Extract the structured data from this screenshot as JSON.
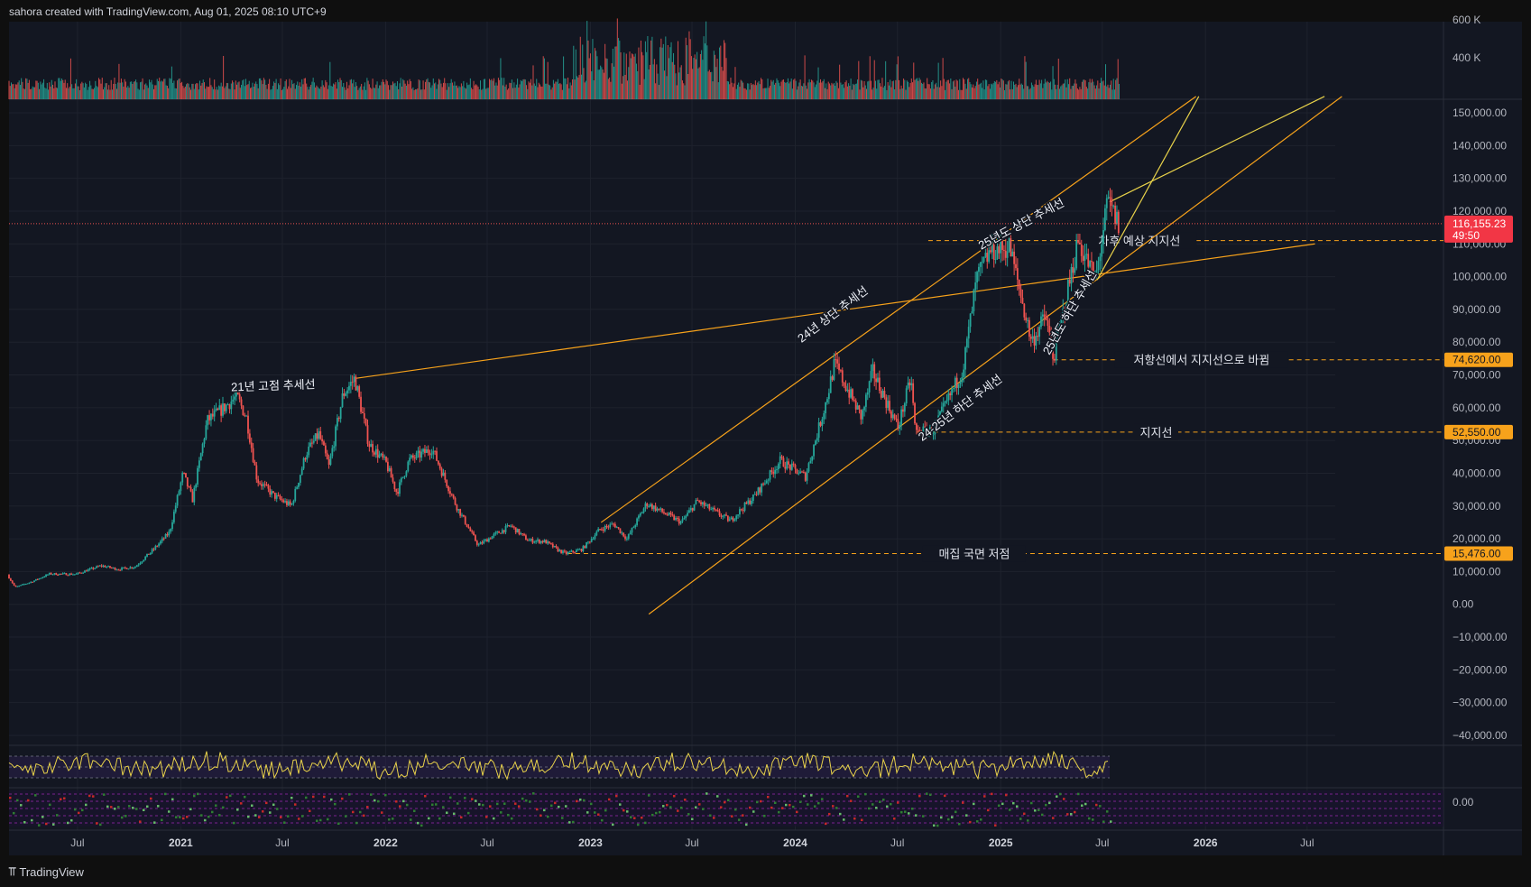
{
  "header": {
    "credit": "sahora created with TradingView.com, Aug 01, 2025 08:10 UTC+9"
  },
  "footer": {
    "brand": "TradingView",
    "logo_icon": "tradingview-logo-icon"
  },
  "colors": {
    "background": "#131722",
    "outer": "#0f0f0f",
    "grid": "#1e222d",
    "trend": "#f7a21b",
    "trend_yellow": "#e8d24a",
    "up": "#26a69a",
    "down": "#ef5350",
    "price_label": "#f23645",
    "level_label": "#f7a21b",
    "rsi": "#e8d24a"
  },
  "chart_data": {
    "type": "line",
    "symbol_price": "116,155.23",
    "countdown": "49:50",
    "current_price": 116155.23,
    "ylim": [
      -45000,
      155000
    ],
    "y_ticks": [
      150000,
      140000,
      130000,
      120000,
      110000,
      100000,
      90000,
      80000,
      70000,
      60000,
      50000,
      40000,
      30000,
      20000,
      10000,
      0,
      -10000,
      -20000,
      -30000,
      -40000
    ],
    "y_tick_labels": [
      "150,000.00",
      "140,000.00",
      "130,000.00",
      "120,000.00",
      "110,000.00",
      "100,000.00",
      "90,000.00",
      "80,000.00",
      "70,000.00",
      "60,000.00",
      "50,000.00",
      "40,000.00",
      "30,000.00",
      "20,000.00",
      "10,000.00",
      "0.00",
      "−10,000.00",
      "−20,000.00",
      "−30,000.00",
      "−40,000.00"
    ],
    "volume_ticks": [
      "600 K",
      "400 K"
    ],
    "oscillator_tick": "0.00",
    "x_range": [
      "2020-03-01",
      "2027-03-01"
    ],
    "x_ticks": [
      {
        "date": "2020-07-01",
        "label": "Jul",
        "bold": false
      },
      {
        "date": "2021-01-01",
        "label": "2021",
        "bold": true
      },
      {
        "date": "2021-07-01",
        "label": "Jul",
        "bold": false
      },
      {
        "date": "2022-01-01",
        "label": "2022",
        "bold": true
      },
      {
        "date": "2022-07-01",
        "label": "Jul",
        "bold": false
      },
      {
        "date": "2023-01-01",
        "label": "2023",
        "bold": true
      },
      {
        "date": "2023-07-01",
        "label": "Jul",
        "bold": false
      },
      {
        "date": "2024-01-01",
        "label": "2024",
        "bold": true
      },
      {
        "date": "2024-07-01",
        "label": "Jul",
        "bold": false
      },
      {
        "date": "2025-01-01",
        "label": "2025",
        "bold": true
      },
      {
        "date": "2025-07-01",
        "label": "Jul",
        "bold": false
      },
      {
        "date": "2026-01-01",
        "label": "2026",
        "bold": true
      },
      {
        "date": "2026-07-01",
        "label": "Jul",
        "bold": false
      }
    ],
    "price_path": [
      [
        "2020-03-01",
        9000
      ],
      [
        "2020-03-15",
        5200
      ],
      [
        "2020-04-15",
        7000
      ],
      [
        "2020-05-15",
        9300
      ],
      [
        "2020-07-01",
        9200
      ],
      [
        "2020-08-15",
        11800
      ],
      [
        "2020-09-15",
        10700
      ],
      [
        "2020-10-15",
        11500
      ],
      [
        "2020-11-15",
        16500
      ],
      [
        "2020-12-15",
        22000
      ],
      [
        "2021-01-08",
        40000
      ],
      [
        "2021-01-25",
        32000
      ],
      [
        "2021-02-20",
        56000
      ],
      [
        "2021-03-15",
        59000
      ],
      [
        "2021-04-14",
        63500
      ],
      [
        "2021-05-01",
        57000
      ],
      [
        "2021-05-20",
        38000
      ],
      [
        "2021-06-20",
        33000
      ],
      [
        "2021-07-20",
        30000
      ],
      [
        "2021-08-15",
        46000
      ],
      [
        "2021-09-07",
        52000
      ],
      [
        "2021-09-25",
        42000
      ],
      [
        "2021-10-20",
        64000
      ],
      [
        "2021-11-10",
        69000
      ],
      [
        "2021-12-05",
        49000
      ],
      [
        "2022-01-05",
        43000
      ],
      [
        "2022-01-24",
        34000
      ],
      [
        "2022-02-15",
        44000
      ],
      [
        "2022-03-28",
        47500
      ],
      [
        "2022-05-10",
        30000
      ],
      [
        "2022-06-18",
        18000
      ],
      [
        "2022-07-15",
        21000
      ],
      [
        "2022-08-15",
        24000
      ],
      [
        "2022-09-15",
        19500
      ],
      [
        "2022-10-15",
        19200
      ],
      [
        "2022-11-08",
        16500
      ],
      [
        "2022-11-21",
        15476
      ],
      [
        "2022-12-20",
        16800
      ],
      [
        "2023-01-20",
        22800
      ],
      [
        "2023-02-15",
        24500
      ],
      [
        "2023-03-10",
        20000
      ],
      [
        "2023-04-14",
        30800
      ],
      [
        "2023-06-15",
        25000
      ],
      [
        "2023-07-13",
        31500
      ],
      [
        "2023-09-10",
        25500
      ],
      [
        "2023-10-23",
        33000
      ],
      [
        "2023-12-08",
        43800
      ],
      [
        "2024-01-22",
        39000
      ],
      [
        "2024-02-28",
        62000
      ],
      [
        "2024-03-14",
        73500
      ],
      [
        "2024-05-01",
        57000
      ],
      [
        "2024-05-21",
        71000
      ],
      [
        "2024-07-05",
        54000
      ],
      [
        "2024-07-28",
        69000
      ],
      [
        "2024-08-05",
        52550
      ],
      [
        "2024-09-06",
        53000
      ],
      [
        "2024-10-29",
        72000
      ],
      [
        "2024-11-22",
        99000
      ],
      [
        "2024-12-17",
        108000
      ],
      [
        "2025-01-20",
        109000
      ],
      [
        "2025-02-28",
        80000
      ],
      [
        "2025-03-25",
        88000
      ],
      [
        "2025-04-08",
        75000
      ],
      [
        "2025-05-22",
        111000
      ],
      [
        "2025-06-22",
        99000
      ],
      [
        "2025-07-14",
        122800
      ],
      [
        "2025-08-01",
        116155
      ]
    ],
    "trendlines": [
      {
        "label": "21년 고점 추세선",
        "color": "orange",
        "from": [
          "2021-11-10",
          69000
        ],
        "to": [
          "2026-07-15",
          110000
        ]
      },
      {
        "label": "24년 상단 추세선",
        "color": "orange",
        "from": [
          "2023-01-20",
          25000
        ],
        "to": [
          "2025-12-15",
          155000
        ]
      },
      {
        "label": "24-25년 하단 추세선",
        "color": "orange",
        "from": [
          "2023-04-15",
          -3000
        ],
        "to": [
          "2026-09-01",
          155000
        ]
      },
      {
        "label": "25년도 상단 추세선",
        "color": "yellow",
        "from": [
          "2025-07-14",
          122800
        ],
        "to": [
          "2026-08-01",
          155000
        ]
      },
      {
        "label": "25년도 하단 추세선",
        "color": "yellow",
        "from": [
          "2025-06-22",
          99000
        ],
        "to": [
          "2025-12-20",
          155000
        ]
      }
    ],
    "annotations": [
      {
        "text": "21년 고점 추세선",
        "date": "2021-06-15",
        "value": 65500,
        "angle": -2
      },
      {
        "text": "24년 상단 추세선",
        "date": "2024-03-12",
        "value": 87500,
        "angle": -37
      },
      {
        "text": "24-25년 하단 추세선",
        "date": "2024-10-25",
        "value": 59000,
        "angle": -37
      },
      {
        "text": "25년도 상단 추세선",
        "date": "2025-02-10",
        "value": 115000,
        "angle": -28
      },
      {
        "text": "25년도 하단 추세선",
        "date": "2025-05-10",
        "value": 88500,
        "angle": -60
      }
    ],
    "levels": [
      {
        "name": "차후 예상 지지선",
        "value": 111000,
        "from": "2024-08-25",
        "label": "",
        "text_date": "2025-09-05"
      },
      {
        "name": "저항선에서 지지선으로 바뀜",
        "value": 74620,
        "from": "2025-04-05",
        "label": "74,620.00",
        "text_date": "2025-12-25"
      },
      {
        "name": "지지선",
        "value": 52550,
        "from": "2024-08-05",
        "label": "52,550.00",
        "text_date": "2025-10-05"
      },
      {
        "name": "매집 국면 저점",
        "value": 15476,
        "from": "2022-11-21",
        "label": "15,476.00",
        "text_date": "2024-11-15"
      }
    ]
  }
}
